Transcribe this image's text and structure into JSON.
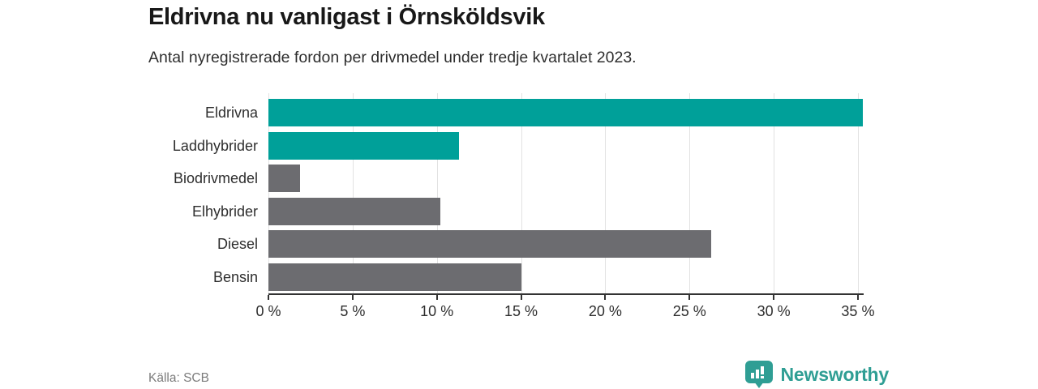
{
  "header": {
    "title": "Eldrivna nu vanligast i Örnsköldsvik",
    "subtitle": "Antal nyregistrerade fordon per drivmedel under tredje kvartalet 2023."
  },
  "chart_data": {
    "type": "bar",
    "orientation": "horizontal",
    "title": "Eldrivna nu vanligast i Örnsköldsvik",
    "subtitle": "Antal nyregistrerade fordon per drivmedel under tredje kvartalet 2023.",
    "categories": [
      "Eldrivna",
      "Laddhybrider",
      "Biodrivmedel",
      "Elhybrider",
      "Diesel",
      "Bensin"
    ],
    "values": [
      35.3,
      11.3,
      1.9,
      10.2,
      26.3,
      15.0
    ],
    "unit": "%",
    "bar_colors": [
      "#00a099",
      "#00a099",
      "#6c6c70",
      "#6c6c70",
      "#6c6c70",
      "#6c6c70"
    ],
    "xlim": [
      0,
      36.7
    ],
    "x_ticks": [
      0,
      5,
      10,
      15,
      20,
      25,
      30,
      35
    ],
    "x_tick_labels": [
      "0 %",
      "5 %",
      "10 %",
      "15 %",
      "20 %",
      "25 %",
      "30 %",
      "35 %"
    ],
    "grid": "vertical-gridlines-on",
    "legend": "none"
  },
  "footer": {
    "source": "Källa: SCB",
    "brand": "Newsworthy",
    "brand_icon": "newsworthy-chart-bubble-icon"
  },
  "colors": {
    "accent_teal": "#00a099",
    "muted_gray": "#6c6c70",
    "brand_teal": "#2f9e94",
    "gridline": "#e2e2e2",
    "axis": "#333333",
    "text_title": "#181818",
    "text_body": "#2e2e2e",
    "text_source": "#7c7c7c"
  }
}
